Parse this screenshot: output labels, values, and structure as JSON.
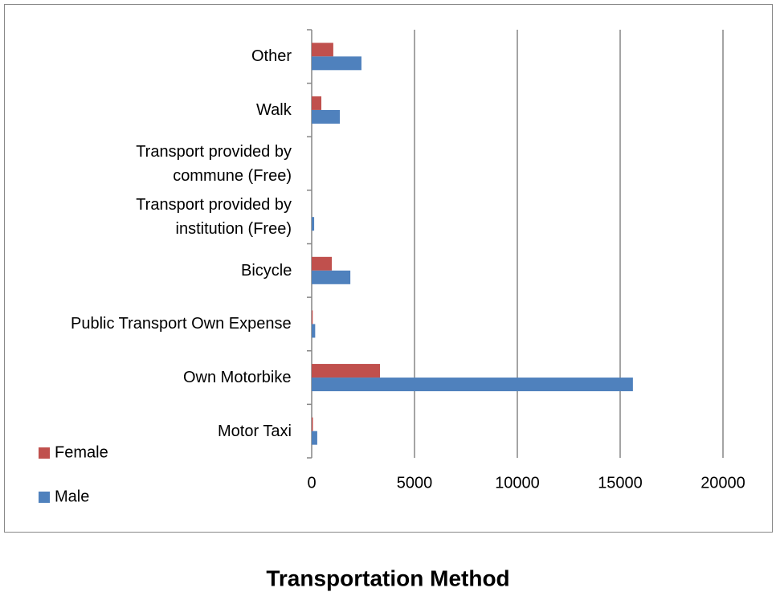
{
  "chart_data": {
    "type": "bar",
    "orientation": "horizontal",
    "title": "Transportation Method",
    "categories": [
      "Motor Taxi",
      "Own Motorbike",
      "Public Transport Own Expense",
      "Bicycle",
      "Transport provided by institution (Free)",
      "Transport provided by commune (Free)",
      "Walk",
      "Other"
    ],
    "series": [
      {
        "name": "Female",
        "color": "#c0504d",
        "values": [
          60,
          3320,
          50,
          980,
          0,
          0,
          470,
          1050
        ]
      },
      {
        "name": "Male",
        "color": "#4f81bd",
        "values": [
          270,
          15620,
          170,
          1880,
          120,
          0,
          1370,
          2420
        ]
      }
    ],
    "xlim": [
      0,
      20000
    ],
    "xticks": [
      0,
      5000,
      10000,
      15000,
      20000
    ],
    "grid": true,
    "legend": "left"
  }
}
